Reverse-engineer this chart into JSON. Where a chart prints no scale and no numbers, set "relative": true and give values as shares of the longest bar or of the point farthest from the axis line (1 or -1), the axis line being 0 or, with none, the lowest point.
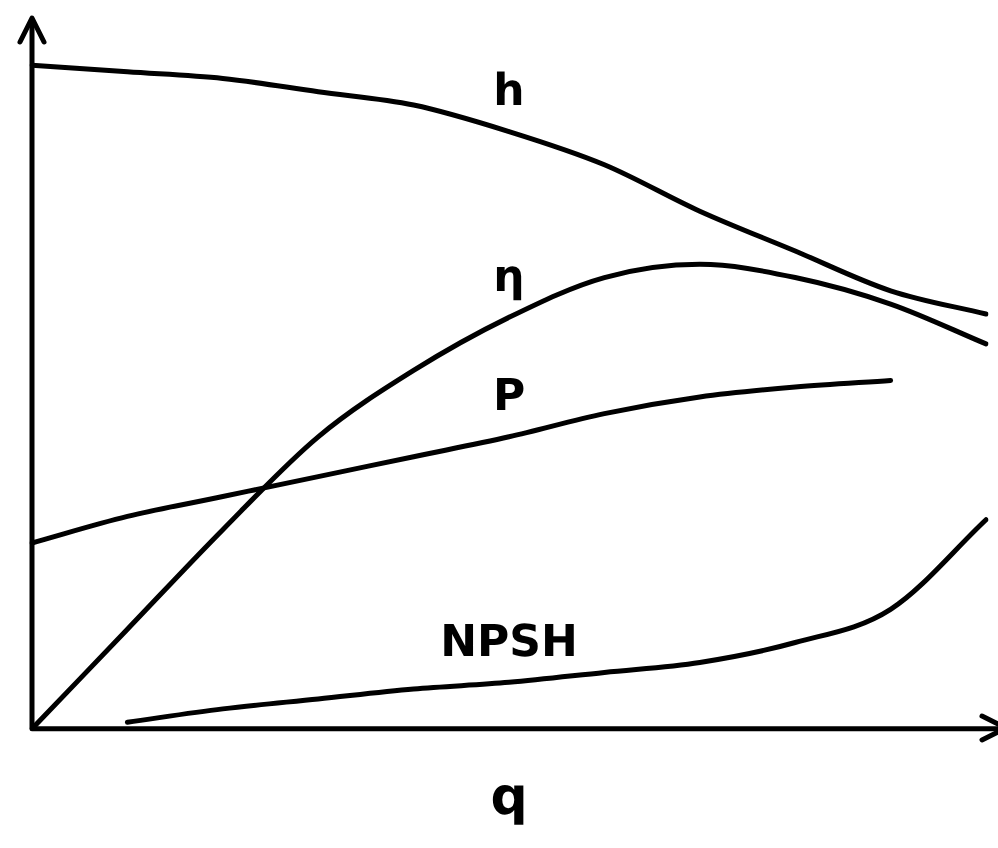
{
  "chart_data": {
    "type": "line",
    "relative": true,
    "xlabel": "q",
    "categories": [
      null,
      null,
      null,
      null,
      null,
      null,
      null,
      null,
      null,
      null,
      null
    ],
    "series": [
      {
        "name": "h",
        "color": "#000000",
        "values": [
          1.0,
          0.99,
          0.98,
          0.96,
          0.94,
          0.9,
          0.85,
          0.78,
          0.72,
          0.66,
          0.625
        ]
      },
      {
        "name": "η",
        "color": "#000000",
        "values": [
          0,
          0.15,
          0.3,
          0.44,
          0.54,
          0.62,
          0.68,
          0.7,
          0.68,
          0.64,
          0.58
        ]
      },
      {
        "name": "P",
        "color": "#000000",
        "values": [
          0.28,
          0.32,
          0.35,
          0.38,
          0.41,
          0.44,
          0.475,
          0.5,
          0.515,
          0.525,
          null
        ]
      },
      {
        "name": "NPSH",
        "color": "#000000",
        "values": [
          null,
          0.01,
          0.03,
          0.045,
          0.06,
          0.07,
          0.085,
          0.1,
          0.13,
          0.18,
          0.315
        ]
      }
    ],
    "grid": false,
    "legend": false,
    "marker": "none",
    "line_style": "solid"
  }
}
